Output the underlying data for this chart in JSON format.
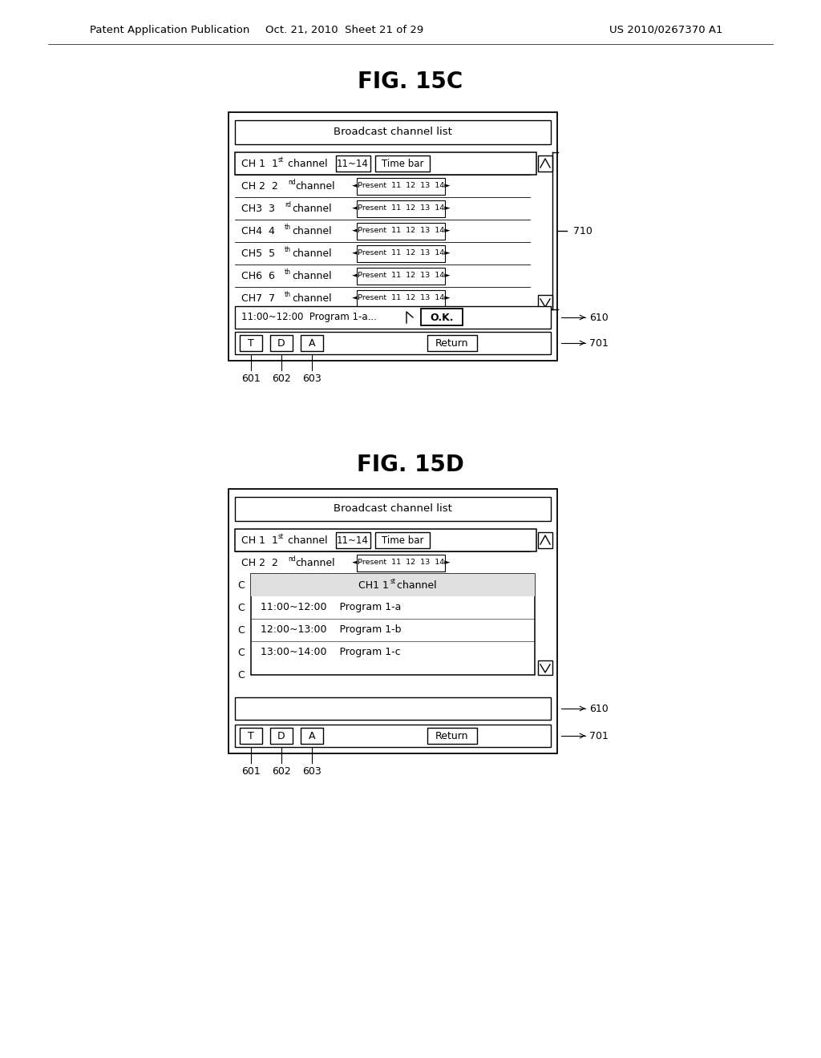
{
  "bg_color": "#ffffff",
  "header_text_left": "Patent Application Publication",
  "header_text_mid": "Oct. 21, 2010  Sheet 21 of 29",
  "header_text_right": "US 2010/0267370 A1",
  "fig15c_title": "FIG. 15C",
  "fig15d_title": "FIG. 15D",
  "broadcast_list_title": "Broadcast channel list",
  "text_color": "#000000",
  "font_size_header": 9.5,
  "font_size_title": 20,
  "font_size_body": 9,
  "font_size_small": 7.5,
  "font_size_super": 6.0,
  "ch15c_rows": [
    [
      "CH 2  2",
      "nd",
      "channel"
    ],
    [
      "CH3  3",
      "rd",
      "channel"
    ],
    [
      "CH4  4",
      "th",
      "channel"
    ],
    [
      "CH5  5",
      "th",
      "channel"
    ],
    [
      "CH6  6",
      "th",
      "channel"
    ],
    [
      "CH7  7",
      "th",
      "channel"
    ]
  ],
  "popup_programs": [
    "11:00~12:00    Program 1-a",
    "12:00~13:00    Program 1-b",
    "13:00~14:00    Program 1-c"
  ]
}
